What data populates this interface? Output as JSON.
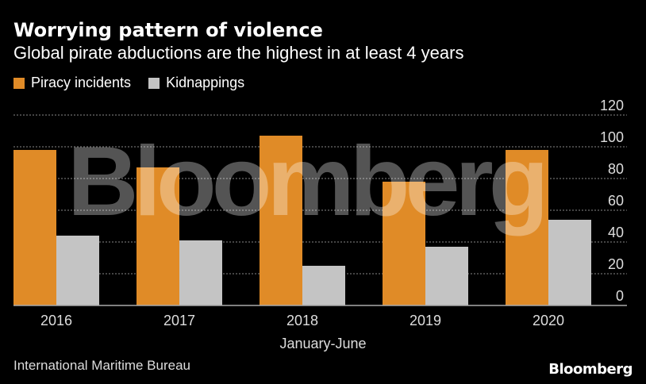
{
  "title": "Worrying pattern of violence",
  "subtitle": "Global pirate abductions are the highest in at least 4 years",
  "source": "International Maritime Bureau",
  "brand": "Bloomberg",
  "watermark": "Bloomberg",
  "chart_data": {
    "type": "bar",
    "categories": [
      "2016",
      "2017",
      "2018",
      "2019",
      "2020"
    ],
    "series": [
      {
        "name": "Piracy incidents",
        "values": [
          98,
          87,
          107,
          78,
          98
        ],
        "color": "#e08b27"
      },
      {
        "name": "Kidnappings",
        "values": [
          44,
          41,
          25,
          37,
          54
        ],
        "color": "#c4c4c4"
      }
    ],
    "xlabel": "January-June",
    "ylabel": "",
    "ylim": [
      0,
      120
    ],
    "yticks": [
      0,
      20,
      40,
      60,
      80,
      100,
      120
    ],
    "grid": true,
    "legend": "top-left"
  }
}
